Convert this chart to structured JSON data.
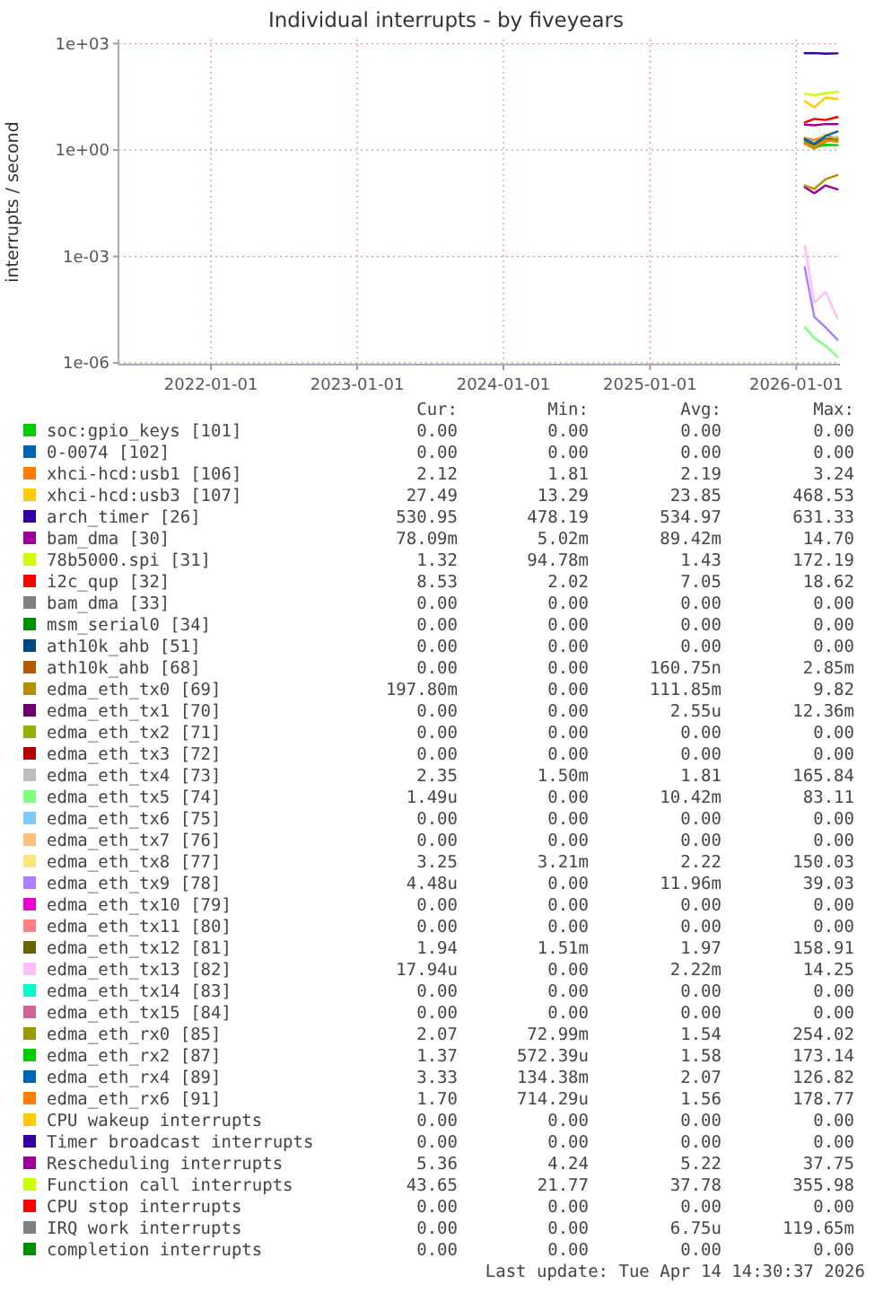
{
  "chart_data": {
    "type": "line",
    "title": "Individual interrupts - by fiveyears",
    "ylabel": "interrupts / second",
    "log": true,
    "grid": true,
    "legend": "bottom",
    "x": [
      "2026-01-22",
      "2026-02-15",
      "2026-03-15",
      "2026-04-14"
    ],
    "xlim": [
      "2021-05-15",
      "2026-04-20"
    ],
    "xticks": [
      {
        "value": "2022-01-01",
        "label": "2022-01-01"
      },
      {
        "value": "2023-01-01",
        "label": "2023-01-01"
      },
      {
        "value": "2024-01-01",
        "label": "2024-01-01"
      },
      {
        "value": "2025-01-01",
        "label": "2025-01-01"
      },
      {
        "value": "2026-01-01",
        "label": "2026-01-01"
      }
    ],
    "ylim": [
      9e-07,
      1300
    ],
    "yticks": [
      {
        "value": 1e-06,
        "label": "1e-06"
      },
      {
        "value": 0.001,
        "label": "1e-03"
      },
      {
        "value": 1,
        "label": "1e+00"
      },
      {
        "value": 1000,
        "label": "1e+03"
      }
    ],
    "series": [
      {
        "name": "soc:gpio_keys [101]",
        "color": "#00cc00",
        "values": [
          null,
          null,
          null,
          null
        ]
      },
      {
        "name": "0-0074 [102]",
        "color": "#0066b3",
        "values": [
          null,
          null,
          null,
          null
        ]
      },
      {
        "name": "xhci-hcd:usb1 [106]",
        "color": "#ff8000",
        "values": [
          2.2,
          1.9,
          2.6,
          2.12
        ]
      },
      {
        "name": "xhci-hcd:usb3 [107]",
        "color": "#ffcc00",
        "values": [
          24,
          16,
          30,
          27.49
        ]
      },
      {
        "name": "arch_timer [26]",
        "color": "#330099",
        "values": [
          535,
          540,
          520,
          530.95
        ]
      },
      {
        "name": "bam_dma [30]",
        "color": "#990099",
        "values": [
          0.09,
          0.06,
          0.1,
          0.07809
        ]
      },
      {
        "name": "78b5000.spi [31]",
        "color": "#ccff00",
        "values": [
          null,
          null,
          null,
          null
        ]
      },
      {
        "name": "i2c_qup [32]",
        "color": "#ff0000",
        "values": [
          6,
          7.5,
          7,
          8.53
        ]
      },
      {
        "name": "bam_dma [33]",
        "color": "#808080",
        "values": [
          null,
          null,
          null,
          null
        ]
      },
      {
        "name": "msm_serial0 [34]",
        "color": "#008f00",
        "values": [
          null,
          null,
          null,
          null
        ]
      },
      {
        "name": "ath10k_ahb [51]",
        "color": "#00487d",
        "values": [
          null,
          null,
          null,
          null
        ]
      },
      {
        "name": "ath10k_ahb [68]",
        "color": "#b35a00",
        "values": [
          null,
          null,
          null,
          null
        ]
      },
      {
        "name": "edma_eth_tx0 [69]",
        "color": "#b38f00",
        "values": [
          0.1,
          0.08,
          0.15,
          0.1978
        ]
      },
      {
        "name": "edma_eth_tx1 [70]",
        "color": "#6b006b",
        "values": [
          null,
          null,
          null,
          null
        ]
      },
      {
        "name": "edma_eth_tx2 [71]",
        "color": "#8fb300",
        "values": [
          null,
          null,
          null,
          null
        ]
      },
      {
        "name": "edma_eth_tx3 [72]",
        "color": "#b30000",
        "values": [
          null,
          null,
          null,
          null
        ]
      },
      {
        "name": "edma_eth_tx4 [73]",
        "color": "#bebebe",
        "values": [
          1.8,
          1.2,
          2.0,
          2.35
        ]
      },
      {
        "name": "edma_eth_tx5 [74]",
        "color": "#80ff80",
        "values": [
          1e-05,
          5e-06,
          3e-06,
          1.49e-06
        ]
      },
      {
        "name": "edma_eth_tx6 [75]",
        "color": "#80c9ff",
        "values": [
          null,
          null,
          null,
          null
        ]
      },
      {
        "name": "edma_eth_tx7 [76]",
        "color": "#ffc080",
        "values": [
          null,
          null,
          null,
          null
        ]
      },
      {
        "name": "edma_eth_tx8 [77]",
        "color": "#ffe680",
        "values": [
          2.2,
          1.5,
          2.8,
          3.25
        ]
      },
      {
        "name": "edma_eth_tx9 [78]",
        "color": "#aa80ff",
        "values": [
          0.0005,
          2e-05,
          1e-05,
          4.48e-06
        ]
      },
      {
        "name": "edma_eth_tx10 [79]",
        "color": "#ee00cc",
        "values": [
          null,
          null,
          null,
          null
        ]
      },
      {
        "name": "edma_eth_tx11 [80]",
        "color": "#ff8080",
        "values": [
          null,
          null,
          null,
          null
        ]
      },
      {
        "name": "edma_eth_tx12 [81]",
        "color": "#666600",
        "values": [
          1.9,
          1.4,
          2.1,
          1.94
        ]
      },
      {
        "name": "edma_eth_tx13 [82]",
        "color": "#ffbfff",
        "values": [
          0.002,
          5e-05,
          0.0001,
          1.794e-05
        ]
      },
      {
        "name": "edma_eth_tx14 [83]",
        "color": "#00ffcc",
        "values": [
          null,
          null,
          null,
          null
        ]
      },
      {
        "name": "edma_eth_tx15 [84]",
        "color": "#cc6699",
        "values": [
          null,
          null,
          null,
          null
        ]
      },
      {
        "name": "edma_eth_rx0 [85]",
        "color": "#999900",
        "values": [
          1.5,
          1.1,
          1.7,
          2.07
        ]
      },
      {
        "name": "edma_eth_rx2 [87]",
        "color": "#00cc00",
        "values": [
          1.6,
          1.2,
          1.4,
          1.37
        ]
      },
      {
        "name": "edma_eth_rx4 [89]",
        "color": "#0066b3",
        "values": [
          2.1,
          1.5,
          2.5,
          3.33
        ]
      },
      {
        "name": "edma_eth_rx6 [91]",
        "color": "#ff8000",
        "values": [
          1.5,
          1.2,
          1.9,
          1.7
        ]
      },
      {
        "name": "CPU wakeup interrupts",
        "color": "#ffcc00",
        "values": [
          null,
          null,
          null,
          null
        ]
      },
      {
        "name": "Timer broadcast interrupts",
        "color": "#330099",
        "values": [
          null,
          null,
          null,
          null
        ]
      },
      {
        "name": "Rescheduling interrupts",
        "color": "#990099",
        "values": [
          5.2,
          5.0,
          5.4,
          5.36
        ]
      },
      {
        "name": "Function call interrupts",
        "color": "#ccff00",
        "values": [
          38,
          35,
          40,
          43.65
        ]
      },
      {
        "name": "CPU stop interrupts",
        "color": "#ff0000",
        "values": [
          null,
          null,
          null,
          null
        ]
      },
      {
        "name": "IRQ work interrupts",
        "color": "#808080",
        "values": [
          null,
          null,
          null,
          null
        ]
      },
      {
        "name": "completion interrupts",
        "color": "#008f00",
        "values": [
          null,
          null,
          null,
          null
        ]
      }
    ],
    "annotations": [
      "Cur:",
      "Min:",
      "Avg:",
      "Max:",
      "0.00",
      "0.00",
      "0.00",
      "0.00",
      "0.00",
      "0.00",
      "0.00",
      "0.00",
      "2.12",
      "1.81",
      "2.19",
      "3.24",
      "27.49",
      "13.29",
      "23.85",
      "468.53",
      "530.95",
      "478.19",
      "534.97",
      "631.33",
      "78.09m",
      "5.02m",
      "89.42m",
      "14.70",
      "1.32",
      "94.78m",
      "1.43",
      "172.19",
      "8.53",
      "2.02",
      "7.05",
      "18.62",
      "0.00",
      "0.00",
      "0.00",
      "0.00",
      "0.00",
      "0.00",
      "0.00",
      "0.00",
      "0.00",
      "0.00",
      "0.00",
      "0.00",
      "0.00",
      "0.00",
      "160.75n",
      "2.85m",
      "197.80m",
      "0.00",
      "111.85m",
      "9.82",
      "0.00",
      "0.00",
      "2.55u",
      "12.36m",
      "0.00",
      "0.00",
      "0.00",
      "0.00",
      "0.00",
      "0.00",
      "0.00",
      "0.00",
      "2.35",
      "1.50m",
      "1.81",
      "165.84",
      "1.49u",
      "0.00",
      "10.42m",
      "83.11",
      "0.00",
      "0.00",
      "0.00",
      "0.00",
      "0.00",
      "0.00",
      "0.00",
      "0.00",
      "3.25",
      "3.21m",
      "2.22",
      "150.03",
      "4.48u",
      "0.00",
      "11.96m",
      "39.03",
      "0.00",
      "0.00",
      "0.00",
      "0.00",
      "0.00",
      "0.00",
      "0.00",
      "0.00",
      "1.94",
      "1.51m",
      "1.97",
      "158.91",
      "17.94u",
      "0.00",
      "2.22m",
      "14.25",
      "0.00",
      "0.00",
      "0.00",
      "0.00",
      "0.00",
      "0.00",
      "0.00",
      "0.00",
      "2.07",
      "72.99m",
      "1.54",
      "254.02",
      "1.37",
      "572.39u",
      "1.58",
      "173.14",
      "3.33",
      "134.38m",
      "2.07",
      "126.82",
      "1.70",
      "714.29u",
      "1.56",
      "178.77",
      "0.00",
      "0.00",
      "0.00",
      "0.00",
      "0.00",
      "0.00",
      "0.00",
      "0.00",
      "5.36",
      "4.24",
      "5.22",
      "37.75",
      "43.65",
      "21.77",
      "37.78",
      "355.98",
      "0.00",
      "0.00",
      "0.00",
      "0.00",
      "0.00",
      "0.00",
      "6.75u",
      "119.65m",
      "0.00",
      "0.00",
      "0.00",
      "0.00",
      "Last update: Tue Apr 14 14:30:37 2026"
    ]
  }
}
